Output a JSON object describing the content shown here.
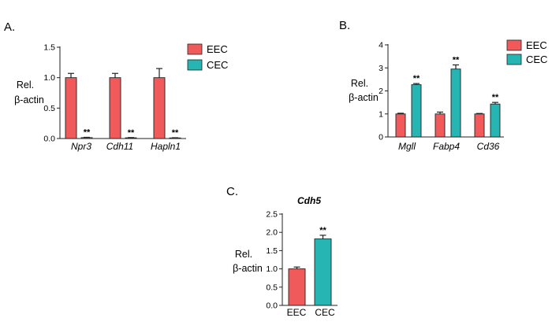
{
  "colors": {
    "EEC": "#f05a5a",
    "CEC": "#26b5b2"
  },
  "chart_data": [
    {
      "type": "bar",
      "panel": "A.",
      "title": "",
      "ylabel": [
        "Rel.",
        "β-actin"
      ],
      "ylim": [
        0,
        1.5
      ],
      "yticks": [
        0.0,
        0.5,
        1.0,
        1.5
      ],
      "ytick_labels": [
        "0.0",
        "0.5",
        "1.0",
        "1.5"
      ],
      "categories": [
        "Npr3",
        "Cdh11",
        "Hapln1"
      ],
      "category_style": "italic",
      "legend": "right",
      "series": [
        {
          "name": "EEC",
          "values": [
            1.0,
            1.0,
            1.0
          ],
          "errors": [
            0.07,
            0.07,
            0.15
          ]
        },
        {
          "name": "CEC",
          "values": [
            0.015,
            0.012,
            0.01
          ],
          "errors": [
            0.005,
            0.004,
            0.003
          ]
        }
      ],
      "annotations": [
        {
          "series": "CEC",
          "category": "Npr3",
          "text": "**"
        },
        {
          "series": "CEC",
          "category": "Cdh11",
          "text": "**"
        },
        {
          "series": "CEC",
          "category": "Hapln1",
          "text": "**"
        }
      ]
    },
    {
      "type": "bar",
      "panel": "B.",
      "title": "",
      "ylabel": [
        "Rel.",
        "β-actin"
      ],
      "ylim": [
        0,
        4
      ],
      "yticks": [
        0,
        1,
        2,
        3,
        4
      ],
      "ytick_labels": [
        "0",
        "1",
        "2",
        "3",
        "4"
      ],
      "categories": [
        "Mgll",
        "Fabp4",
        "Cd36"
      ],
      "category_style": "italic",
      "legend": "right",
      "series": [
        {
          "name": "EEC",
          "values": [
            1.0,
            1.0,
            1.0
          ],
          "errors": [
            0.03,
            0.08,
            0.02
          ]
        },
        {
          "name": "CEC",
          "values": [
            2.27,
            2.95,
            1.43
          ],
          "errors": [
            0.05,
            0.18,
            0.07
          ]
        }
      ],
      "annotations": [
        {
          "series": "CEC",
          "category": "Mgll",
          "text": "**"
        },
        {
          "series": "CEC",
          "category": "Fabp4",
          "text": "**"
        },
        {
          "series": "CEC",
          "category": "Cd36",
          "text": "**"
        }
      ]
    },
    {
      "type": "bar",
      "panel": "C.",
      "title": "Cdh5",
      "ylabel": [
        "Rel.",
        "β-actin"
      ],
      "ylim": [
        0,
        2.5
      ],
      "yticks": [
        0.0,
        0.5,
        1.0,
        1.5,
        2.0,
        2.5
      ],
      "ytick_labels": [
        "0.0",
        "0.5",
        "1.0",
        "1.5",
        "2.0",
        "2.5"
      ],
      "categories": [
        "EEC",
        "CEC"
      ],
      "category_style": "normal",
      "legend": "none",
      "series": [
        {
          "name": "",
          "values": [
            1.0,
            1.82
          ],
          "errors": [
            0.05,
            0.1
          ]
        }
      ],
      "annotations": [
        {
          "category": "CEC",
          "text": "**"
        }
      ]
    }
  ]
}
